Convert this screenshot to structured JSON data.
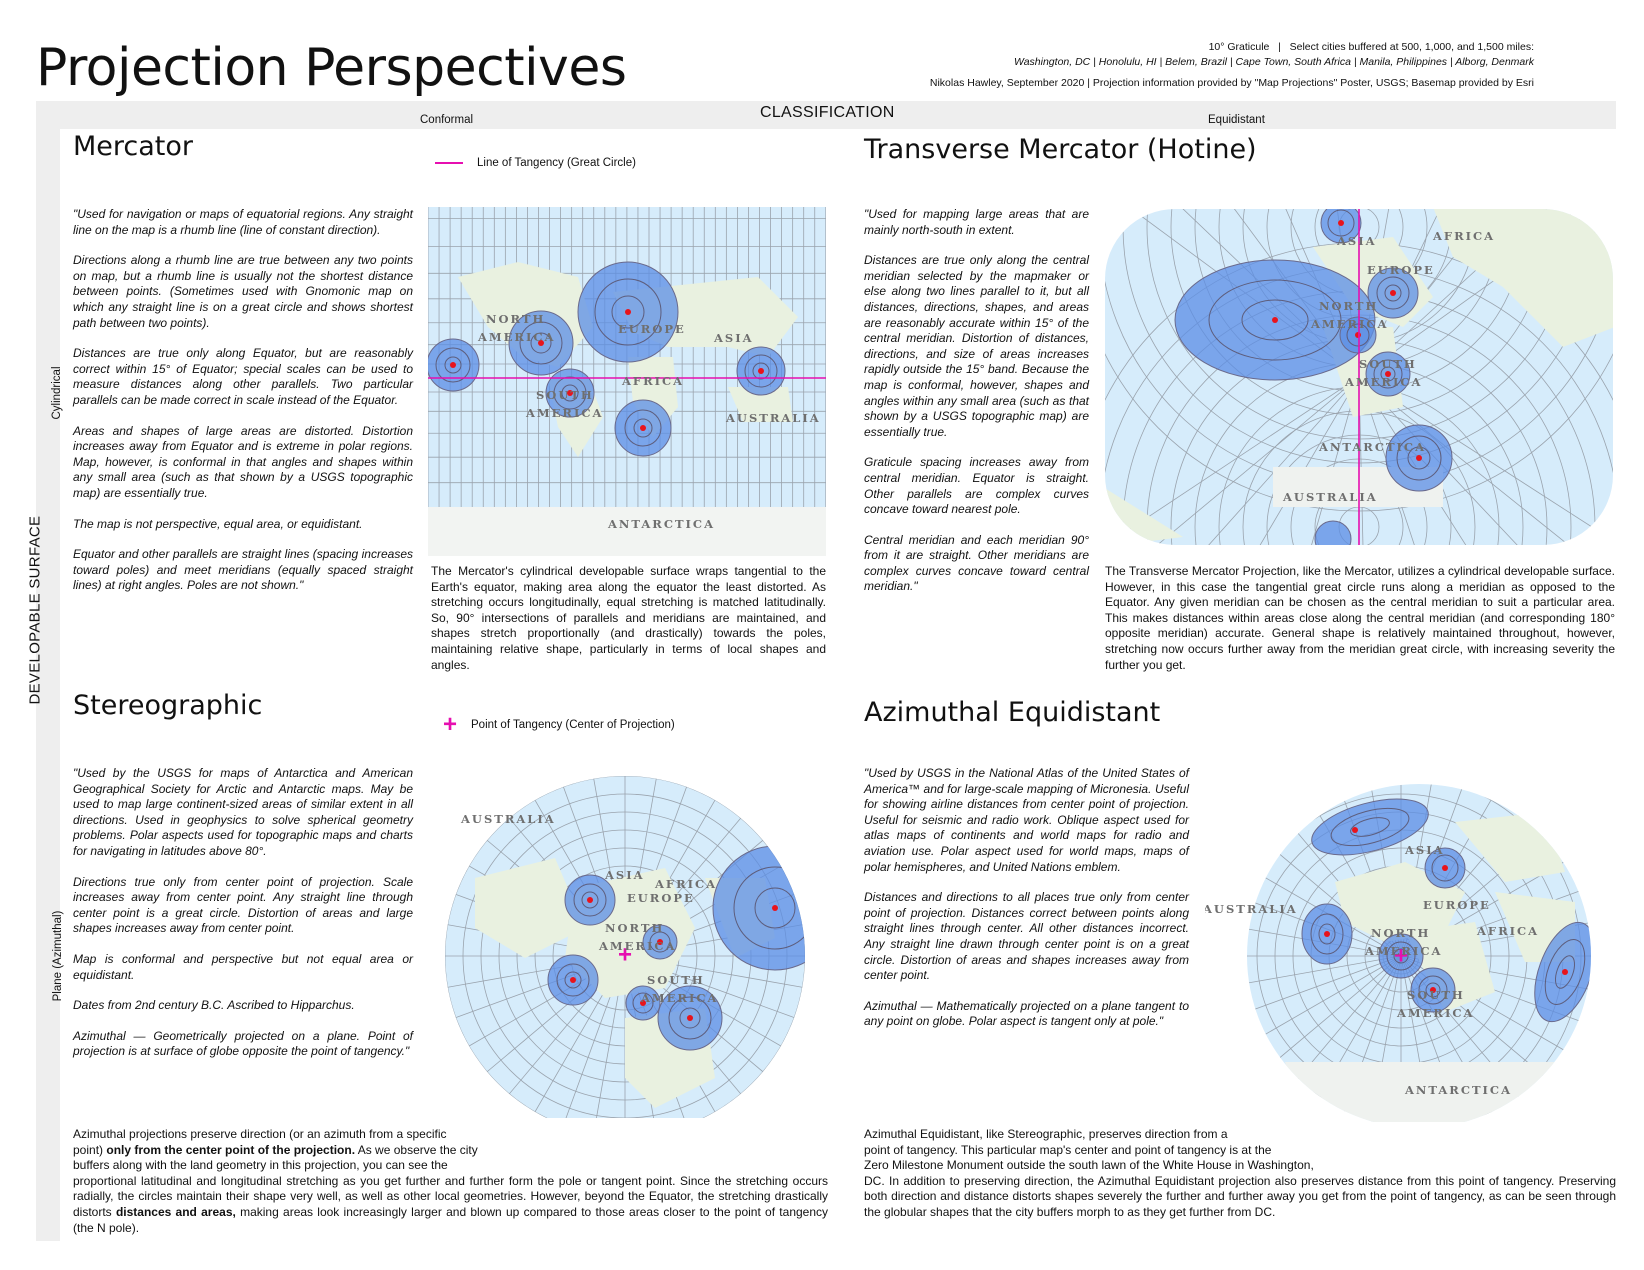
{
  "header": {
    "title": "Projection Perspectives",
    "graticule_note": "10° Graticule",
    "buffer_note": "Select cities buffered at 500, 1,000, and 1,500 miles:",
    "cities": "Washington, DC | Honolulu, HI | Belem, Brazil | Cape Town, South Africa | Manila, Philippines | Alborg, Denmark",
    "credit": "Nikolas Hawley, September 2020   |   Projection information provided by \"Map Projections\" Poster, USGS; Basemap provided by Esri"
  },
  "classification": {
    "title": "CLASSIFICATION",
    "left": "Conformal",
    "right": "Equidistant"
  },
  "developable": {
    "title": "DEVELOPABLE SURFACE",
    "top": "Cylindrical",
    "bottom": "Plane (Azimuthal)"
  },
  "colors": {
    "tangent": "#e60fb0",
    "buffer": "#5b8ee6",
    "ocean": "#d6ecfb",
    "land": "#e9f1e0",
    "city": "#e8141c"
  },
  "mercator": {
    "title": "Mercator",
    "legend": "Line of Tangency (Great Circle)",
    "quote": [
      "\"Used for navigation or maps of equatorial regions. Any straight line on the map is a rhumb line (line of constant direction).",
      "Directions along a rhumb line are true between any two points on map, but a rhumb line is usually not the shortest distance between points. (Sometimes used with Gnomonic map on which any straight line is on a great circle and shows shortest path between two points).",
      "Distances are true only along Equator, but are reasonably correct within 15° of Equator; special scales can be used to measure distances along other parallels. Two particular parallels can be made correct in scale instead of the Equator.",
      "Areas and shapes of large areas are distorted. Distortion increases away from Equator and is extreme in polar regions. Map, however, is conformal in that angles and shapes within any small area (such as that shown by a USGS topographic map) are essentially true.",
      "The map is not perspective, equal area, or equidistant.",
      "Equator and other parallels are straight lines (spacing increases toward poles) and meet meridians (equally spaced straight lines) at right angles. Poles are not shown.\""
    ],
    "caption": "The Mercator's cylindrical developable surface wraps tangential to the Earth's equator, making area along the equator the least distorted. As stretching occurs longitudinally, equal stretching is matched latitudinally. So, 90° intersections of parallels and meridians are maintained, and shapes stretch proportionally (and drastically) towards the poles, maintaining relative shape, particularly in terms of local shapes and angles.",
    "labels": [
      "NORTH",
      "AMERICA",
      "EUROPE",
      "ASIA",
      "AFRICA",
      "SOUTH",
      "AMERICA",
      "AUSTRALIA",
      "ANTARCTICA"
    ]
  },
  "transverse": {
    "title": "Transverse Mercator (Hotine)",
    "quote": [
      "\"Used for mapping large areas that are mainly north-south in extent.",
      "Distances are true only along the central meridian selected by the mapmaker or else along two lines parallel to it, but all distances, directions, shapes, and areas are reasonably accurate within 15° of the central meridian. Distortion of distances, directions, and size of areas increases rapidly outside the 15° band. Because the map is conformal, however, shapes and angles within any small area (such as that shown by a USGS topographic map) are essentially true.",
      "Graticule spacing increases away from central meridian. Equator is straight. Other parallels are complex curves concave toward nearest pole.",
      "Central meridian and each meridian 90° from it are straight. Other meridians are complex curves concave toward central meridian.\""
    ],
    "caption": "The Transverse Mercator Projection, like the Mercator, utilizes a cylindrical developable surface. However, in this case the tangential great circle runs along a meridian as opposed to the Equator. Any given meridian can be chosen as the central meridian to suit a particular area. This makes distances  within areas close along the central meridian (and corresponding 180° opposite meridian) accurate. General shape is relatively maintained throughout, however, stretching now occurs further away from the meridian great circle, with increasing severity the further you get.",
    "labels": [
      "ASIA",
      "AFRICA",
      "EUROPE",
      "NORTH",
      "AMERICA",
      "SOUTH",
      "AMERICA",
      "ANTARCTICA",
      "AUSTRALIA"
    ]
  },
  "stereographic": {
    "title": "Stereographic",
    "legend": "Point of Tangency (Center of Projection)",
    "quote": [
      "\"Used by the USGS for maps of Antarctica and American Geographical Society for Arctic and Antarctic maps. May be used to map large continent-sized areas of similar extent in all directions. Used in geophysics to solve spherical geometry problems. Polar aspects used for topographic maps and charts for navigating in latitudes above 80°.",
      "Directions true only from center point of projection. Scale increases away from center point. Any straight line through center point is a great circle. Distortion of areas and large shapes increases away from center point.",
      "Map is conformal and perspective but not equal area or equidistant.",
      "Dates from 2nd century B.C. Ascribed to Hipparchus.",
      "Azimuthal — Geometrically projected on a plane. Point of projection is at surface of globe opposite the point of tangency.\""
    ],
    "caption_a": "Azimuthal projections preserve direction (or an azimuth from a specific",
    "caption_b": "point) ",
    "caption_b_bold": "only from the center point of the projection.",
    "caption_c": " As we observe the city",
    "caption_d": "buffers along with the land geometry in this projection, you can see the",
    "caption_e": "proportional latitudinal and longitudinal stretching as you get further and further form the pole or tangent point. Since the stretching occurs radially, the circles maintain their shape very well, as well as other local geometries. However, beyond the Equator, the stretching drastically distorts ",
    "caption_e_bold": "distances and areas,",
    "caption_f": " making areas look increasingly larger and blown up compared to those areas closer to the point of tangency (the N pole).",
    "labels": [
      "AUSTRALIA",
      "ASIA",
      "AFRICA",
      "EUROPE",
      "NORTH",
      "AMERICA",
      "SOUTH",
      "AMERICA"
    ]
  },
  "azimuthal": {
    "title": "Azimuthal Equidistant",
    "quote": [
      "\"Used by USGS in the National Atlas of the United States of America™ and for large-scale mapping of Micronesia. Useful for showing airline distances from center point of projection. Useful for seismic and radio work. Oblique aspect used for atlas maps of continents and world maps for radio and aviation use. Polar aspect used for world maps, maps of polar hemispheres, and United Nations emblem.",
      "Distances and directions to all places true only from center point of projection. Distances correct between points along straight lines through center. All other distances incorrect. Any straight line drawn through center point is on a great circle. Distortion of areas and shapes increases away from center point.",
      "Azimuthal — Mathematically projected on a plane tangent to any point on globe. Polar aspect is tangent only at pole.\""
    ],
    "caption_a": "Azimuthal Equidistant, like Stereographic, preserves direction from a",
    "caption_b": "point of tangency. This particular map's center and point of tangency is at the",
    "caption_c": "Zero Milestone Monument outside the south lawn of the White House in Washington,",
    "caption_d": "DC.  In addition to preserving direction, the Azimuthal Equidistant projection also preserves distance from this point of tangency. Preserving both direction and distance distorts shapes severely the further and further away you get from the point of tangency, as can be seen through the globular shapes that the city buffers morph to as they get further from DC.",
    "labels": [
      "ASIA",
      "AUSTRALIA",
      "EUROPE",
      "AFRICA",
      "NORTH",
      "AMERICA",
      "SOUTH",
      "AMERICA",
      "ANTARCTICA"
    ]
  }
}
